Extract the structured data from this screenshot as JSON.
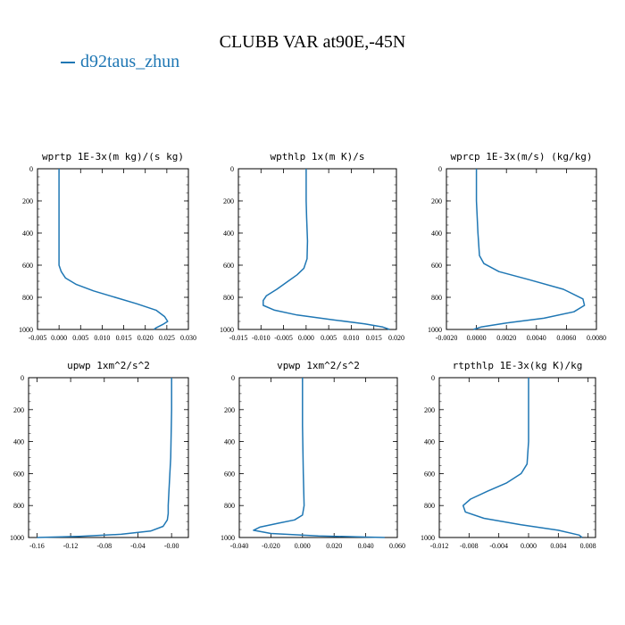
{
  "figure": {
    "title": "CLUBB VAR at90E,-45N",
    "legend": {
      "label": "d92taus_zhun",
      "color": "#1f77b4"
    }
  },
  "chart_data": [
    {
      "type": "line",
      "title": "wprtp  1E-3x(m kg)/(s kg)",
      "xlim": [
        -0.005,
        0.03
      ],
      "ylim": [
        0,
        1000
      ],
      "y_inverted": true,
      "xticks": [
        "-0.005",
        "0.000",
        "0.005",
        "0.010",
        "0.015",
        "0.020",
        "0.025",
        "0.030"
      ],
      "yticks": [
        "0",
        "200",
        "400",
        "600",
        "800",
        "1000"
      ],
      "series": [
        {
          "x": [
            0.0,
            0.0,
            0.0,
            0.0,
            0.0,
            0.0005,
            0.0015,
            0.004,
            0.008,
            0.013,
            0.018,
            0.0225,
            0.0245,
            0.0252,
            0.024,
            0.0225,
            0.022
          ],
          "y": [
            0,
            200,
            400,
            550,
            600,
            640,
            680,
            720,
            760,
            800,
            840,
            880,
            920,
            950,
            970,
            990,
            1000
          ]
        }
      ]
    },
    {
      "type": "line",
      "title": "wpthlp  1x(m K)/s",
      "xlim": [
        -0.015,
        0.02
      ],
      "ylim": [
        0,
        1000
      ],
      "y_inverted": true,
      "xticks": [
        "-0.015",
        "-0.010",
        "-0.005",
        "0.000",
        "0.005",
        "0.010",
        "0.015",
        "0.020"
      ],
      "yticks": [
        "0",
        "200",
        "400",
        "600",
        "800",
        "1000"
      ],
      "series": [
        {
          "x": [
            0.0,
            0.0,
            0.0001,
            0.0003,
            0.0002,
            -0.0005,
            -0.002,
            -0.004,
            -0.0065,
            -0.0088,
            -0.0095,
            -0.0095,
            -0.007,
            -0.002,
            0.006,
            0.013,
            0.017,
            0.0185
          ],
          "y": [
            0,
            200,
            300,
            450,
            560,
            620,
            660,
            700,
            750,
            790,
            820,
            850,
            880,
            910,
            940,
            965,
            985,
            1000
          ]
        }
      ]
    },
    {
      "type": "line",
      "title": "wprcp  1E-3x(m/s) (kg/kg)",
      "xlim": [
        -0.002,
        0.008
      ],
      "ylim": [
        0,
        1000
      ],
      "y_inverted": true,
      "xticks": [
        "-0.0020",
        "0.0000",
        "0.0020",
        "0.0040",
        "0.0060",
        "0.0080"
      ],
      "yticks": [
        "0",
        "200",
        "400",
        "600",
        "800",
        "1000"
      ],
      "series": [
        {
          "x": [
            0.0,
            0.0,
            0.0001,
            0.0002,
            0.0005,
            0.0015,
            0.0035,
            0.0058,
            0.0071,
            0.0072,
            0.0065,
            0.0045,
            0.002,
            0.0003,
            -0.0002
          ],
          "y": [
            0,
            200,
            400,
            540,
            590,
            640,
            690,
            750,
            810,
            850,
            890,
            930,
            960,
            985,
            1000
          ]
        }
      ]
    },
    {
      "type": "line",
      "title": "upwp  1xm^2/s^2",
      "xlim": [
        -0.17,
        0.02
      ],
      "ylim": [
        0,
        1000
      ],
      "y_inverted": true,
      "xticks": [
        "-0.16",
        "-0.12",
        "-0.08",
        "-0.04",
        "-0.00"
      ],
      "yticks": [
        "0",
        "200",
        "400",
        "600",
        "800",
        "1000"
      ],
      "series": [
        {
          "x": [
            0.0,
            0.0,
            -0.001,
            -0.003,
            -0.004,
            -0.004,
            -0.005,
            -0.01,
            -0.025,
            -0.06,
            -0.11,
            -0.16
          ],
          "y": [
            0,
            200,
            500,
            700,
            800,
            850,
            890,
            930,
            960,
            980,
            993,
            1000
          ]
        }
      ]
    },
    {
      "type": "line",
      "title": "vpwp  1xm^2/s^2",
      "xlim": [
        -0.04,
        0.06
      ],
      "ylim": [
        0,
        1000
      ],
      "y_inverted": true,
      "xticks": [
        "-0.040",
        "-0.020",
        "0.000",
        "0.020",
        "0.040",
        "0.060"
      ],
      "yticks": [
        "0",
        "200",
        "400",
        "600",
        "800",
        "1000"
      ],
      "series": [
        {
          "x": [
            0.0,
            0.0,
            0.0005,
            0.001,
            0.0,
            -0.005,
            -0.015,
            -0.027,
            -0.031,
            -0.02,
            0.01,
            0.04,
            0.052
          ],
          "y": [
            0,
            300,
            600,
            800,
            860,
            890,
            910,
            935,
            955,
            975,
            990,
            997,
            1000
          ]
        }
      ]
    },
    {
      "type": "line",
      "title": "rtpthlp  1E-3x(kg K)/kg",
      "xlim": [
        -0.012,
        0.009
      ],
      "ylim": [
        0,
        1000
      ],
      "y_inverted": true,
      "xticks": [
        "-0.012",
        "-0.008",
        "-0.004",
        "0.000",
        "0.004",
        "0.008"
      ],
      "yticks": [
        "0",
        "200",
        "400",
        "600",
        "800",
        "1000"
      ],
      "series": [
        {
          "x": [
            0.0,
            0.0,
            -0.0002,
            -0.001,
            -0.003,
            -0.0055,
            -0.0078,
            -0.0088,
            -0.0085,
            -0.006,
            -0.001,
            0.004,
            0.0068,
            0.0072
          ],
          "y": [
            0,
            400,
            540,
            600,
            660,
            710,
            760,
            800,
            840,
            880,
            920,
            955,
            985,
            1000
          ]
        }
      ]
    }
  ]
}
